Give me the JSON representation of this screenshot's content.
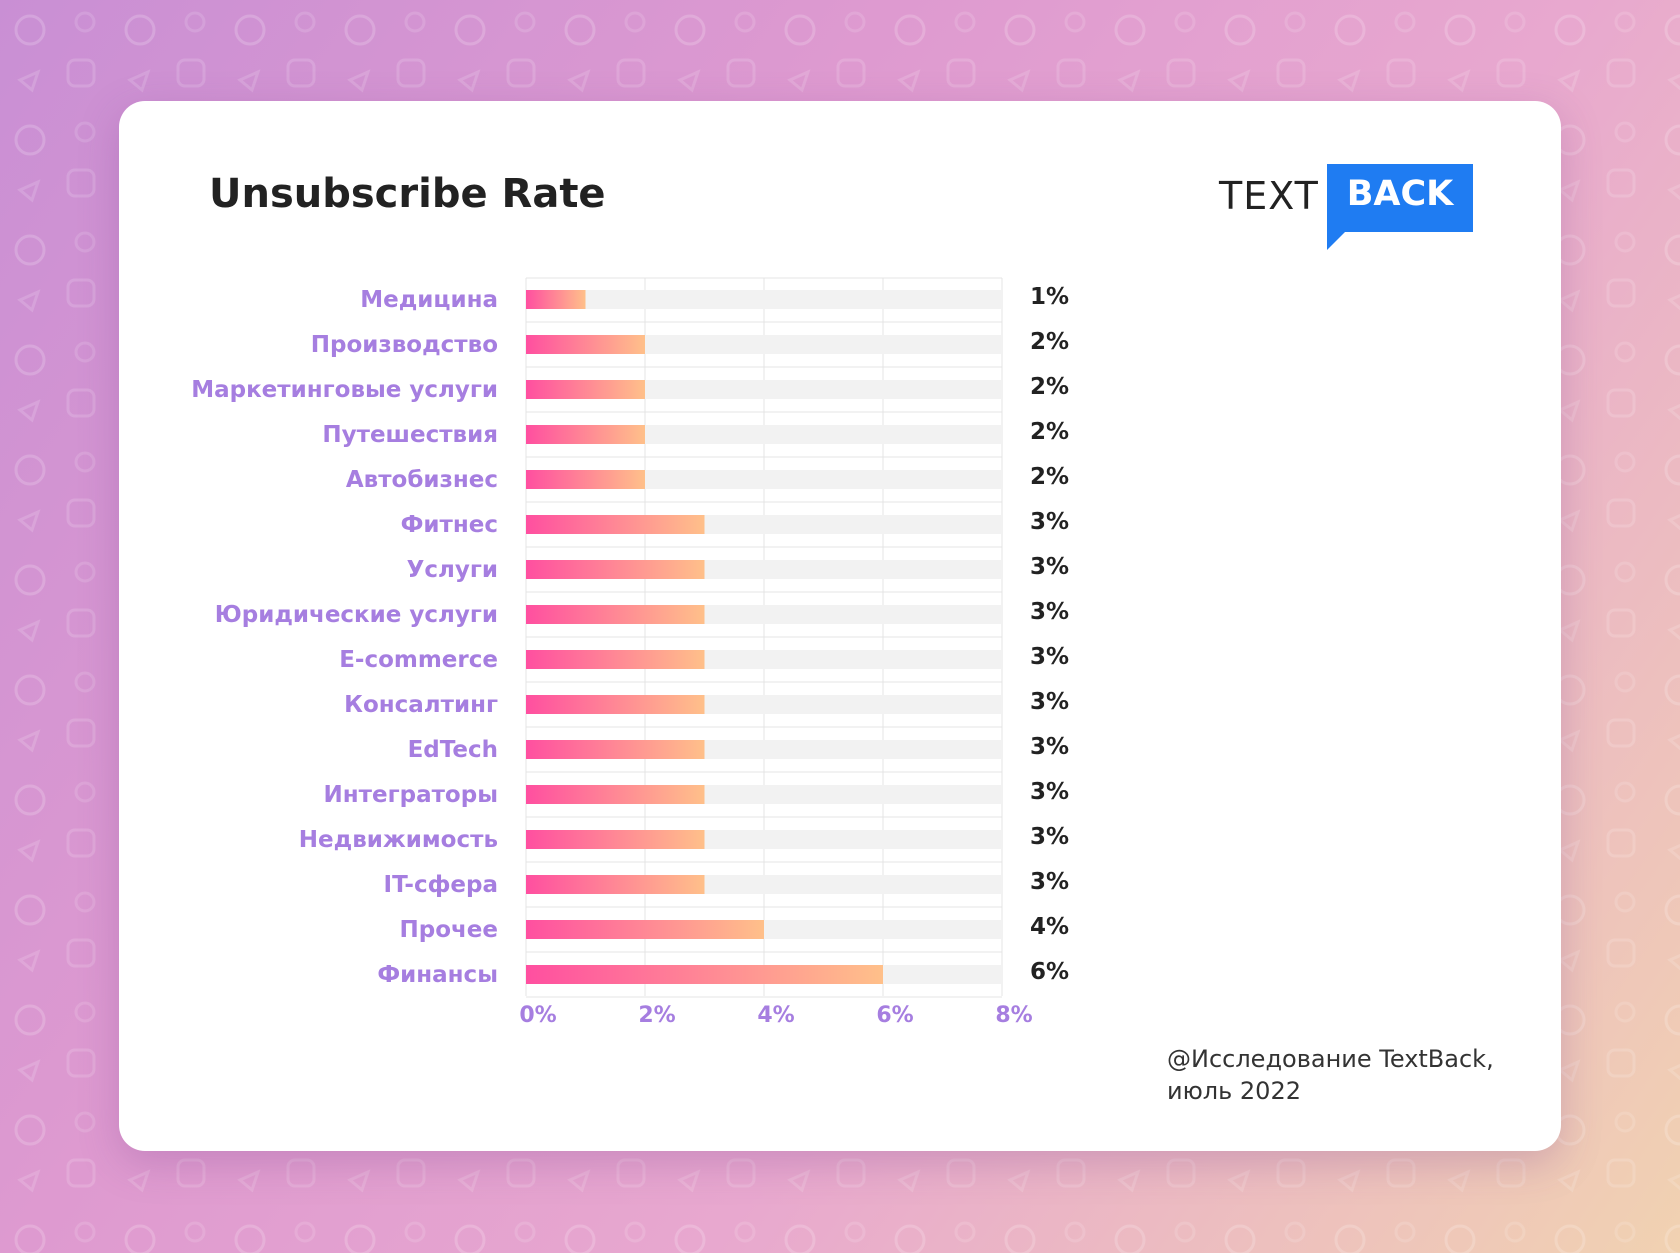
{
  "title": "Unsubscribe Rate",
  "logo": {
    "text_part": "TEXT",
    "box_part": "BACK",
    "color": "#1f7cf2"
  },
  "footer": {
    "line1": "@Исследование TextBack,",
    "line2": "июль 2022"
  },
  "colors": {
    "bar_start": "#ff4fa0",
    "bar_end": "#ffc08a",
    "track": "#f2f2f2",
    "category_label": "#a67ee0",
    "tick_label": "#a67ee0",
    "value_label": "#222222",
    "grid": "#e4e4e4"
  },
  "chart_data": {
    "type": "bar",
    "orientation": "horizontal",
    "categories": [
      "Медицина",
      "Производство",
      "Маркетинговые услуги",
      "Путешествия",
      "Автобизнес",
      "Фитнес",
      "Услуги",
      "Юридические услуги",
      "E-commerce",
      "Консалтинг",
      "EdTech",
      "Интеграторы",
      "Недвижимость",
      "IT-сфера",
      "Прочее",
      "Финансы"
    ],
    "values": [
      1,
      2,
      2,
      2,
      2,
      3,
      3,
      3,
      3,
      3,
      3,
      3,
      3,
      3,
      4,
      6
    ],
    "value_labels": [
      "1%",
      "2%",
      "2%",
      "2%",
      "2%",
      "3%",
      "3%",
      "3%",
      "3%",
      "3%",
      "3%",
      "3%",
      "3%",
      "3%",
      "4%",
      "6%"
    ],
    "xlim": [
      0,
      8
    ],
    "xticks": [
      0,
      2,
      4,
      6,
      8
    ],
    "xtick_labels": [
      "0%",
      "2%",
      "4%",
      "6%",
      "8%"
    ],
    "grid": true,
    "legend": false,
    "title": "Unsubscribe Rate",
    "xlabel": "",
    "ylabel": ""
  }
}
